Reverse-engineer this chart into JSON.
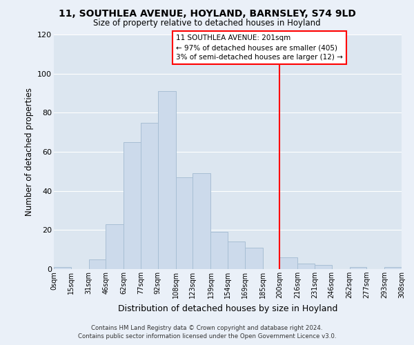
{
  "title": "11, SOUTHLEA AVENUE, HOYLAND, BARNSLEY, S74 9LD",
  "subtitle": "Size of property relative to detached houses in Hoyland",
  "xlabel": "Distribution of detached houses by size in Hoyland",
  "ylabel": "Number of detached properties",
  "bar_color": "#ccdaeb",
  "bar_edge_color": "#a8bfd4",
  "bin_edges": [
    0,
    15,
    31,
    46,
    62,
    77,
    92,
    108,
    123,
    139,
    154,
    169,
    185,
    200,
    216,
    231,
    246,
    262,
    277,
    293,
    308
  ],
  "bin_labels": [
    "0sqm",
    "15sqm",
    "31sqm",
    "46sqm",
    "62sqm",
    "77sqm",
    "92sqm",
    "108sqm",
    "123sqm",
    "139sqm",
    "154sqm",
    "169sqm",
    "185sqm",
    "200sqm",
    "216sqm",
    "231sqm",
    "246sqm",
    "262sqm",
    "277sqm",
    "293sqm",
    "308sqm"
  ],
  "counts": [
    1,
    0,
    5,
    23,
    65,
    75,
    91,
    47,
    49,
    19,
    14,
    11,
    0,
    6,
    3,
    2,
    0,
    1,
    0,
    1
  ],
  "vline_x": 200,
  "ylim": [
    0,
    120
  ],
  "yticks": [
    0,
    20,
    40,
    60,
    80,
    100,
    120
  ],
  "annotation_title": "11 SOUTHLEA AVENUE: 201sqm",
  "annotation_line1": "← 97% of detached houses are smaller (405)",
  "annotation_line2": "3% of semi-detached houses are larger (12) →",
  "footer_line1": "Contains HM Land Registry data © Crown copyright and database right 2024.",
  "footer_line2": "Contains public sector information licensed under the Open Government Licence v3.0.",
  "grid_color": "#ffffff",
  "bg_color": "#dce6f0",
  "fig_bg_color": "#eaf0f8"
}
